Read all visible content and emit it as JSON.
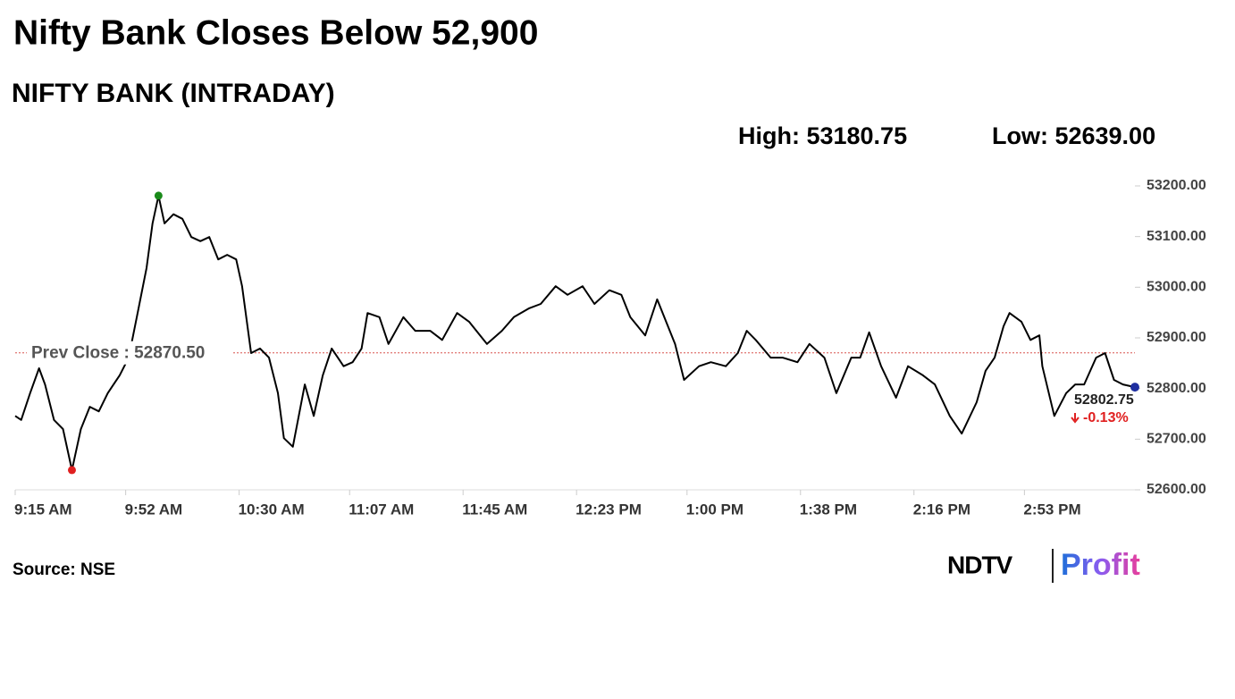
{
  "chart_data": {
    "type": "line",
    "title": "Nifty Bank Closes Below 52,900",
    "subtitle": "NIFTY BANK (INTRADAY)",
    "high_label": "High: 53180.75",
    "low_label": "Low: 52639.00",
    "prev_close": {
      "label": "Prev Close : 52870.50",
      "value": 52870.5,
      "color": "#d9534f"
    },
    "close_label": "52802.75",
    "change_label": "-0.13%",
    "source": "Source: NSE",
    "logo": [
      "NDTV",
      "Profit"
    ],
    "x": [
      "9:15 AM",
      "9:17 AM",
      "9:20 AM",
      "9:23 AM",
      "9:25 AM",
      "9:28 AM",
      "9:31 AM",
      "9:34 AM",
      "9:37 AM",
      "9:40 AM",
      "9:43 AM",
      "9:46 AM",
      "9:50 AM",
      "9:53 AM",
      "9:56 AM",
      "9:59 AM",
      "10:01 AM",
      "10:03 AM",
      "10:05 AM",
      "10:08 AM",
      "10:11 AM",
      "10:14 AM",
      "10:17 AM",
      "10:20 AM",
      "10:23 AM",
      "10:26 AM",
      "10:29 AM",
      "10:31 AM",
      "10:34 AM",
      "10:37 AM",
      "10:40 AM",
      "10:43 AM",
      "10:45 AM",
      "10:48 AM",
      "10:52 AM",
      "10:55 AM",
      "10:58 AM",
      "11:01 AM",
      "11:05 AM",
      "11:08 AM",
      "11:11 AM",
      "11:13 AM",
      "11:17 AM",
      "11:20 AM",
      "11:25 AM",
      "11:29 AM",
      "11:34 AM",
      "11:38 AM",
      "11:43 AM",
      "11:47 AM",
      "11:53 AM",
      "11:58 AM",
      "12:02 PM",
      "12:07 PM",
      "12:11 PM",
      "12:16 PM",
      "12:20 PM",
      "12:25 PM",
      "12:29 PM",
      "12:34 PM",
      "12:38 PM",
      "12:41 PM",
      "12:46 PM",
      "12:50 PM",
      "12:53 PM",
      "12:56 PM",
      "12:59 PM",
      "1:04 PM",
      "1:08 PM",
      "1:13 PM",
      "1:17 PM",
      "1:20 PM",
      "1:23 PM",
      "1:28 PM",
      "1:32 PM",
      "1:37 PM",
      "1:41 PM",
      "1:46 PM",
      "1:50 PM",
      "1:55 PM",
      "1:58 PM",
      "2:01 PM",
      "2:05 PM",
      "2:10 PM",
      "2:14 PM",
      "2:19 PM",
      "2:23 PM",
      "2:28 PM",
      "2:32 PM",
      "2:37 PM",
      "2:40 PM",
      "2:43 PM",
      "2:46 PM",
      "2:48 PM",
      "2:52 PM",
      "2:55 PM",
      "2:58 PM",
      "2:59 PM",
      "3:03 PM",
      "3:07 PM",
      "3:10 PM",
      "3:13 PM",
      "3:17 PM",
      "3:20 PM",
      "3:23 PM",
      "3:26 PM",
      "3:30 PM"
    ],
    "series": [
      {
        "name": "NIFTY BANK",
        "color": "#000000",
        "values": [
          52746,
          52738,
          52791,
          52840,
          52808,
          52738,
          52720,
          52639,
          52720,
          52764,
          52755,
          52791,
          52826,
          52861,
          52949,
          53038,
          53126,
          53180.75,
          53126,
          53144,
          53135,
          53099,
          53091,
          53099,
          53055,
          53064,
          53055,
          53002,
          52870,
          52879,
          52861,
          52791,
          52702,
          52685,
          52808,
          52746,
          52826,
          52879,
          52844,
          52852,
          52879,
          52949,
          52941,
          52888,
          52941,
          52914,
          52914,
          52896,
          52949,
          52932,
          52888,
          52914,
          52941,
          52958,
          52967,
          53002,
          52985,
          53002,
          52967,
          52994,
          52985,
          52941,
          52905,
          52976,
          52932,
          52888,
          52817,
          52844,
          52852,
          52844,
          52870,
          52914,
          52896,
          52861,
          52861,
          52852,
          52888,
          52861,
          52791,
          52861,
          52861,
          52911,
          52844,
          52782,
          52844,
          52826,
          52808,
          52746,
          52711,
          52773,
          52835,
          52861,
          52923,
          52949,
          52932,
          52896,
          52905,
          52844,
          52746,
          52791,
          52808,
          52808,
          52861,
          52870,
          52817,
          52808,
          52802.75
        ]
      }
    ],
    "high_color": "#1a8a1a",
    "low_color": "#e02020",
    "last_color": "#1f2fa0",
    "xlim": [
      "9:15 AM",
      "3:30 PM"
    ],
    "xticks": [
      "9:15 AM",
      "9:52 AM",
      "10:30 AM",
      "11:07 AM",
      "11:45 AM",
      "12:23 PM",
      "1:00 PM",
      "1:38 PM",
      "2:16 PM",
      "2:53 PM"
    ],
    "ylim": [
      52600,
      53200
    ],
    "yticks": [
      {
        "value": 52600,
        "label": "52600.00"
      },
      {
        "value": 52700,
        "label": "52700.00"
      },
      {
        "value": 52800,
        "label": "52800.00"
      },
      {
        "value": 52900,
        "label": "52900.00"
      },
      {
        "value": 53000,
        "label": "53000.00"
      },
      {
        "value": 53100,
        "label": "53100.00"
      },
      {
        "value": 53200,
        "label": "53200.00"
      }
    ],
    "grid": false
  }
}
